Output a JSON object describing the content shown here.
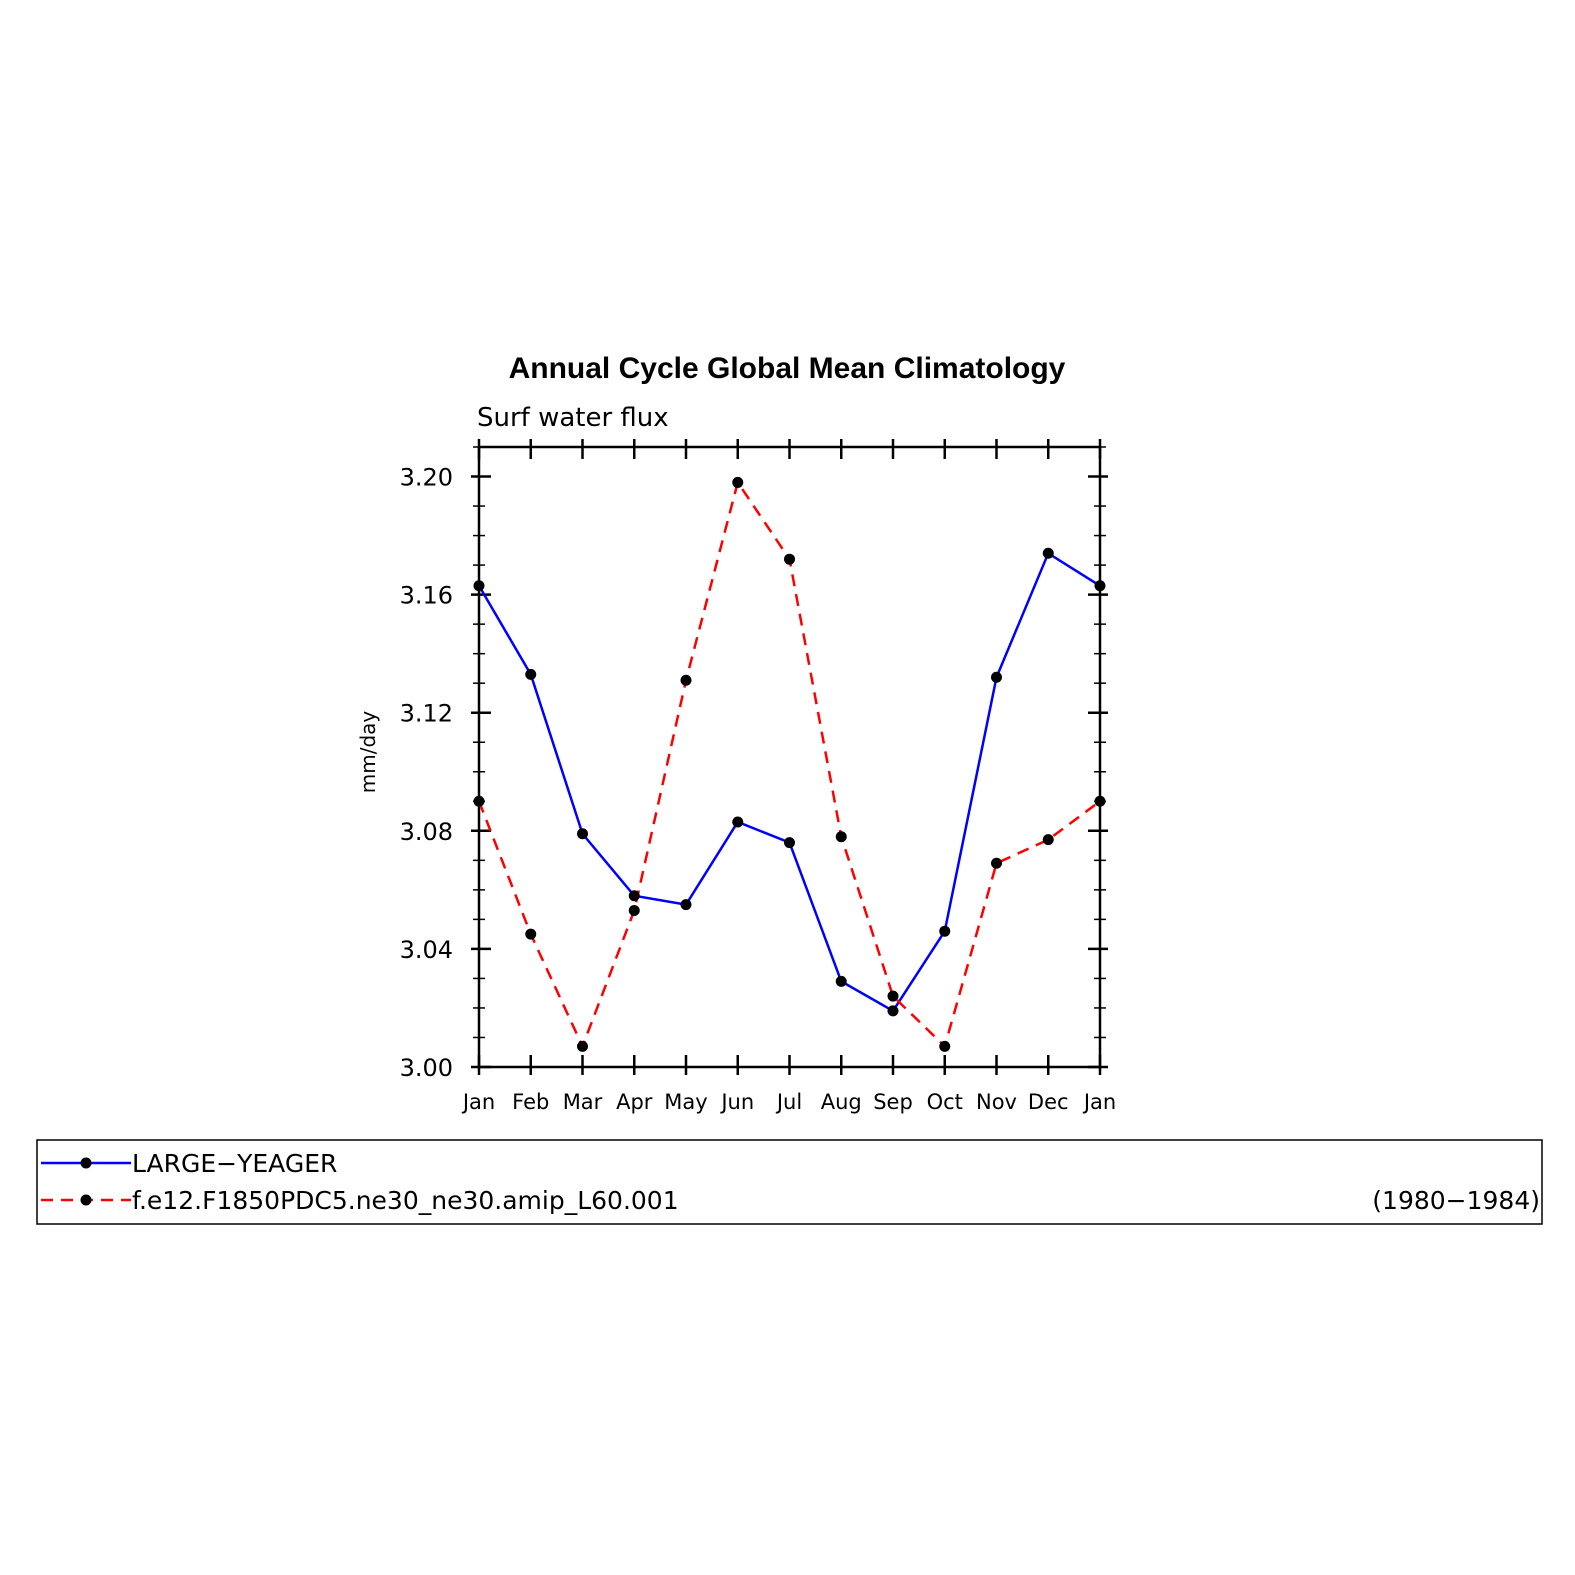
{
  "chart_data": {
    "type": "line",
    "title": "Annual Cycle Global Mean Climatology",
    "subtitle": "Surf water flux",
    "xlabel": "",
    "ylabel": "mm/day",
    "categories": [
      "Jan",
      "Feb",
      "Mar",
      "Apr",
      "May",
      "Jun",
      "Jul",
      "Aug",
      "Sep",
      "Oct",
      "Nov",
      "Dec",
      "Jan"
    ],
    "ylim": [
      3.0,
      3.21
    ],
    "yticks": [
      "3.00",
      "3.04",
      "3.08",
      "3.12",
      "3.16",
      "3.20"
    ],
    "grid": false,
    "legend_position": "bottom",
    "series": [
      {
        "name": "LARGE−YEAGER",
        "color": "#0000ff",
        "dash": "solid",
        "values": [
          3.163,
          3.133,
          3.079,
          3.058,
          3.055,
          3.083,
          3.076,
          3.029,
          3.019,
          3.046,
          3.132,
          3.174,
          3.163
        ]
      },
      {
        "name": "f.e12.F1850PDC5.ne30_ne30.amip_L60.001",
        "color": "#ff0000",
        "dash": "dashed",
        "values": [
          3.09,
          3.045,
          3.007,
          3.053,
          3.131,
          3.198,
          3.172,
          3.078,
          3.024,
          3.007,
          3.069,
          3.077,
          3.09
        ]
      }
    ],
    "annotation": "(1980−1984)"
  }
}
